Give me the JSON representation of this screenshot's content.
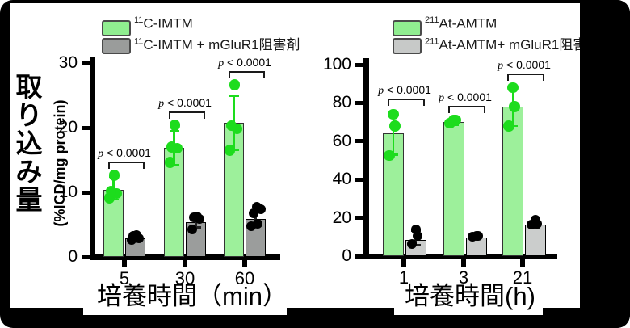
{
  "figure": {
    "frame_color": "#000000",
    "background_color": "#ffffff"
  },
  "chart_data": [
    {
      "id": "uptake-vs-minutes",
      "type": "bar",
      "ylabel_title": "取り込み量",
      "ylabel_unit": "(%ICD/mg protein)",
      "xlabel": "培養時間（min）",
      "ylim": [
        0,
        30
      ],
      "yticks": [
        0,
        10,
        20,
        30
      ],
      "categories": [
        "5",
        "30",
        "60"
      ],
      "grid": "off",
      "legend_position": "top",
      "legend": [
        {
          "sup": "11",
          "base": "C-IMTM",
          "jp": "",
          "swatch_color": "#90EE90"
        },
        {
          "sup": "11",
          "base": "C-IMTM + ",
          "jp": "mGluR1阻害剤",
          "swatch_color": "#9A9C9B"
        }
      ],
      "series": [
        {
          "name": "11C-IMTM",
          "bar_color": "#9DF09B",
          "bar_border": "#333333",
          "point_color": "#1DDC1D",
          "error_color": "#1DDC1D",
          "bar_values": [
            10.4,
            16.9,
            20.8
          ],
          "points": [
            [
              9.1,
              9.8,
              10.2,
              12.6
            ],
            [
              14.6,
              16.8,
              17.0,
              20.4
            ],
            [
              16.5,
              19.8,
              20.3,
              26.6
            ]
          ],
          "error_bars": [
            [
              8.9,
              12.4
            ],
            [
              14.3,
              19.5
            ],
            [
              16.6,
              25.0
            ]
          ]
        },
        {
          "name": "11C-IMTM + mGluR1阻害剤",
          "bar_color": "#9B9D9C",
          "bar_border": "#000000",
          "point_color": "#000000",
          "error_color": "#222222",
          "bar_values": [
            2.9,
            5.4,
            5.9
          ],
          "points": [
            [
              2.6,
              2.9,
              3.2,
              3.4
            ],
            [
              4.3,
              5.9,
              6.1,
              6.2
            ],
            [
              4.8,
              5.1,
              6.8,
              7.4,
              7.8
            ]
          ],
          "error_bars": [
            [
              2.4,
              3.4
            ],
            [
              4.6,
              6.3
            ],
            [
              4.9,
              7.0
            ]
          ]
        }
      ],
      "p_values": [
        "p < 0.0001",
        "p < 0.0001",
        "p < 0.0001"
      ]
    },
    {
      "id": "uptake-vs-hours",
      "type": "bar",
      "ylabel_title": "",
      "ylabel_unit": "",
      "xlabel": "培養時間(h)",
      "ylim": [
        0,
        100
      ],
      "yticks": [
        0,
        20,
        40,
        60,
        80,
        100
      ],
      "categories": [
        "1",
        "3",
        "21"
      ],
      "grid": "off",
      "legend_position": "top",
      "legend": [
        {
          "sup": "211",
          "base": "At-AMTM",
          "jp": "",
          "swatch_color": "#90EE90"
        },
        {
          "sup": "211",
          "base": "At-AMTM+ ",
          "jp": "mGluR1阻害剤",
          "swatch_color": "#C7C9C8"
        }
      ],
      "series": [
        {
          "name": "211At-AMTM",
          "bar_color": "#9DF09B",
          "bar_border": "#333333",
          "point_color": "#1DDC1D",
          "error_color": "#1DDC1D",
          "bar_values": [
            64,
            70,
            78
          ],
          "points": [
            [
              52.5,
              68,
              74
            ],
            [
              69.5,
              71,
              71
            ],
            [
              68,
              78,
              88
            ]
          ],
          "error_bars": [
            [
              53,
              75
            ],
            [
              68.5,
              71.5
            ],
            [
              68,
              88
            ]
          ]
        },
        {
          "name": "211At-AMTM+ mGluR1阻害剤",
          "bar_color": "#CBCDCC",
          "bar_border": "#000000",
          "point_color": "#000000",
          "error_color": "#222222",
          "bar_values": [
            8.5,
            9.5,
            16.5
          ],
          "points": [
            [
              6.5,
              10.5,
              14
            ],
            [
              10,
              10.5,
              10.5
            ],
            [
              16.5,
              17,
              19
            ]
          ],
          "error_bars": [
            [
              6,
              13.5
            ],
            [
              9,
              11
            ],
            [
              15,
              18.5
            ]
          ]
        }
      ],
      "p_values": [
        "p < 0.0001",
        "p < 0.0001",
        "p < 0.0001"
      ]
    }
  ]
}
